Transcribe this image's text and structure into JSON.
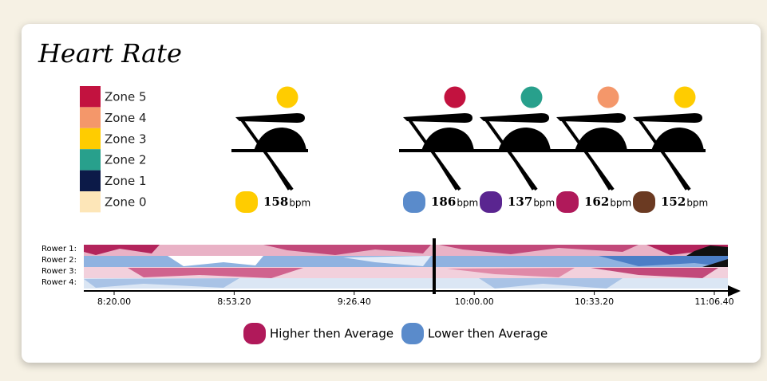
{
  "header": {
    "title": "Heart Rate"
  },
  "zones": [
    {
      "label": "Zone 5",
      "color": "#c2123f"
    },
    {
      "label": "Zone 4",
      "color": "#f4976a"
    },
    {
      "label": "Zone 3",
      "color": "#ffcc00"
    },
    {
      "label": "Zone 2",
      "color": "#28a08c"
    },
    {
      "label": "Zone 1",
      "color": "#0c1a48"
    },
    {
      "label": "Zone 0",
      "color": "#fde6b8"
    }
  ],
  "boats": [
    {
      "rowers": [
        {
          "zone_color": "#ffcc00",
          "bpm": 158,
          "unit": "bpm",
          "color": "#ffcc00"
        }
      ]
    },
    {
      "rowers": [
        {
          "zone_color": "#c2123f",
          "bpm": 186,
          "unit": "bpm",
          "color": "#5a8bcb"
        },
        {
          "zone_color": "#28a08c",
          "bpm": 137,
          "unit": "bpm",
          "color": "#5a2590"
        },
        {
          "zone_color": "#f4976a",
          "bpm": 162,
          "unit": "bpm",
          "color": "#b0195a"
        },
        {
          "zone_color": "#ffcc00",
          "bpm": 152,
          "unit": "bpm",
          "color": "#6b3a22"
        }
      ]
    }
  ],
  "timeline": {
    "rows": [
      "Rower 1:",
      "Rower 2:",
      "Rower 3:",
      "Rower 4:"
    ],
    "ticks": [
      "8:20.00",
      "8:53.20",
      "9:26.40",
      "10:00.00",
      "10:33.20",
      "11:06.40"
    ]
  },
  "legend": [
    {
      "label": "Higher then Average",
      "color": "#b0195a"
    },
    {
      "label": "Lower then Average",
      "color": "#5a8bcb"
    }
  ]
}
